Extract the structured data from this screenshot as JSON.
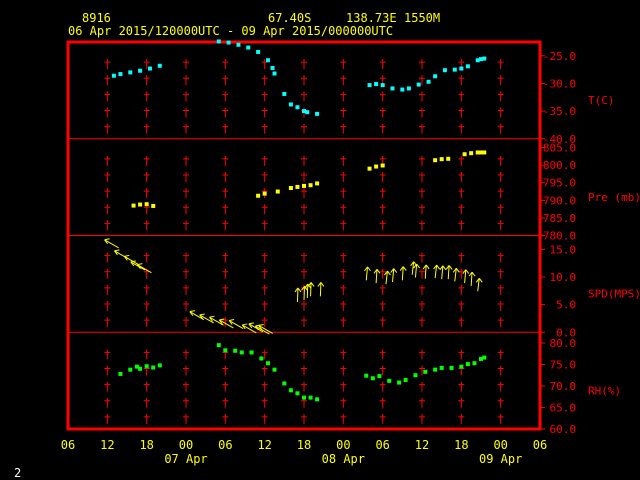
{
  "header": {
    "station": "8916",
    "lat": "67.40S",
    "lon": "138.73E",
    "elevation": "1550M",
    "period": "06 Apr 2015/120000UTC - 09 Apr 2015/000000UTC"
  },
  "corner_label": "2",
  "colors": {
    "frame": "#ff0000",
    "text": "#ffff00",
    "temperature": "#00ffff",
    "pressure": "#ffff00",
    "wind": "#ffff00",
    "humidity": "#00ff00"
  },
  "chart_data": {
    "type": "scatter",
    "x_tick_labels": [
      "06",
      "12",
      "18",
      "00",
      "06",
      "12",
      "18",
      "00",
      "06",
      "12",
      "18",
      "00",
      "06"
    ],
    "date_labels": [
      {
        "label": "07 Apr",
        "at_hour": 24
      },
      {
        "label": "08 Apr",
        "at_hour": 48
      },
      {
        "label": "09 Apr",
        "at_hour": 72
      }
    ],
    "x_unit": "hours from 06 Apr 2015 00UTC",
    "xlim": [
      6,
      78
    ],
    "panels": [
      {
        "id": "temperature",
        "ylabel": "T(C)",
        "ylim": [
          -40,
          -22.5
        ],
        "ticks": [
          -40.0,
          -35.0,
          -30.0,
          -25.0
        ],
        "tick_labels": [
          "-40.0",
          "-35.0",
          "-30.0",
          "-25.0"
        ],
        "points": [
          [
            13,
            -28.6
          ],
          [
            14,
            -28.3
          ],
          [
            15.5,
            -28
          ],
          [
            17,
            -27.7
          ],
          [
            18.5,
            -27.3
          ],
          [
            20,
            -26.8
          ],
          [
            29,
            -22.4
          ],
          [
            30.5,
            -22.6
          ],
          [
            32,
            -23
          ],
          [
            33.5,
            -23.5
          ],
          [
            35,
            -24.3
          ],
          [
            36.5,
            -25.8
          ],
          [
            37.2,
            -27.2
          ],
          [
            37.5,
            -28.2
          ],
          [
            39,
            -31.9
          ],
          [
            40,
            -33.8
          ],
          [
            41,
            -34.3
          ],
          [
            42,
            -35
          ],
          [
            42.5,
            -35.2
          ],
          [
            44,
            -35.5
          ],
          [
            52,
            -30.3
          ],
          [
            53,
            -30.1
          ],
          [
            54,
            -30.3
          ],
          [
            55.5,
            -30.9
          ],
          [
            57,
            -31.1
          ],
          [
            58,
            -30.9
          ],
          [
            59.5,
            -30.2
          ],
          [
            61,
            -29.7
          ],
          [
            62,
            -28.7
          ],
          [
            63.5,
            -27.6
          ],
          [
            65,
            -27.5
          ],
          [
            66,
            -27.3
          ],
          [
            67,
            -26.9
          ],
          [
            68.5,
            -25.8
          ],
          [
            69,
            -25.6
          ],
          [
            69.5,
            -25.5
          ]
        ]
      },
      {
        "id": "pressure",
        "ylabel": "Pre (mb)",
        "ylim": [
          780,
          807.5
        ],
        "ticks": [
          780.0,
          785.0,
          790.0,
          795.0,
          800.0,
          805.0
        ],
        "tick_labels": [
          "780.0",
          "785.0",
          "790.0",
          "795.0",
          "800.0",
          "805.0"
        ],
        "points": [
          [
            16,
            788.5
          ],
          [
            17,
            788.8
          ],
          [
            18,
            788.9
          ],
          [
            19,
            788.4
          ],
          [
            35,
            791.3
          ],
          [
            36,
            791.9
          ],
          [
            38,
            792.5
          ],
          [
            40,
            793.5
          ],
          [
            41,
            793.8
          ],
          [
            42,
            794.1
          ],
          [
            43,
            794.3
          ],
          [
            44,
            794.8
          ],
          [
            52,
            799
          ],
          [
            53,
            799.6
          ],
          [
            54,
            799.9
          ],
          [
            62,
            801.4
          ],
          [
            63,
            801.7
          ],
          [
            64,
            801.8
          ],
          [
            66.5,
            803.1
          ],
          [
            67.5,
            803.4
          ],
          [
            68.5,
            803.6
          ],
          [
            69,
            803.6
          ],
          [
            69.5,
            803.6
          ]
        ]
      },
      {
        "id": "wind",
        "ylabel": "SPD(MPS)",
        "ylim": [
          0,
          17.5
        ],
        "ticks": [
          0.0,
          5.0,
          10.0,
          15.0
        ],
        "tick_labels": [
          "0.0",
          "5.0",
          "10.0",
          "15.0"
        ],
        "barbs": [
          [
            12.5,
            16
          ],
          [
            14,
            14
          ],
          [
            15.5,
            13
          ],
          [
            16.5,
            12
          ],
          [
            17.5,
            11.5
          ],
          [
            25.5,
            3
          ],
          [
            27,
            2.4
          ],
          [
            28.5,
            2
          ],
          [
            30,
            1.5
          ],
          [
            31.5,
            1.4
          ],
          [
            33.5,
            0.6
          ],
          [
            34.5,
            0.8
          ],
          [
            35.5,
            0.4
          ],
          [
            36,
            0.5
          ],
          [
            41,
            5.5
          ],
          [
            42,
            5.8
          ],
          [
            42.5,
            6.2
          ],
          [
            43,
            6.5
          ],
          [
            44.5,
            6.5
          ],
          [
            51.5,
            9.4
          ],
          [
            53,
            8.9
          ],
          [
            54.5,
            8.7
          ],
          [
            55.5,
            9.1
          ],
          [
            57,
            9.4
          ],
          [
            58.5,
            10.4
          ],
          [
            59,
            9.9
          ],
          [
            60.5,
            9.7
          ],
          [
            62,
            9.8
          ],
          [
            63,
            9.6
          ],
          [
            64,
            9.6
          ],
          [
            65,
            9.2
          ],
          [
            66.5,
            8.9
          ],
          [
            67.5,
            8.4
          ],
          [
            68.5,
            7.4
          ]
        ]
      },
      {
        "id": "humidity",
        "ylabel": "RH(%)",
        "ylim": [
          60,
          82.5
        ],
        "ticks": [
          60.0,
          65.0,
          70.0,
          75.0,
          80.0
        ],
        "tick_labels": [
          "60.0",
          "65.0",
          "70.0",
          "75.0",
          "80.0"
        ],
        "points": [
          [
            14,
            72.8
          ],
          [
            15.5,
            73.8
          ],
          [
            16.5,
            74.5
          ],
          [
            17,
            74
          ],
          [
            18,
            74.6
          ],
          [
            19,
            74.3
          ],
          [
            20,
            74.8
          ],
          [
            29,
            79.5
          ],
          [
            30,
            78.3
          ],
          [
            31.5,
            78.2
          ],
          [
            32.5,
            77.8
          ],
          [
            34,
            77.8
          ],
          [
            35.5,
            76.4
          ],
          [
            36.5,
            75.3
          ],
          [
            37.5,
            73.8
          ],
          [
            39,
            70.6
          ],
          [
            40,
            69
          ],
          [
            41,
            68.3
          ],
          [
            42,
            67.3
          ],
          [
            43,
            67.3
          ],
          [
            44,
            66.9
          ],
          [
            51.5,
            72.4
          ],
          [
            52.5,
            71.8
          ],
          [
            53.5,
            72.3
          ],
          [
            55,
            71.2
          ],
          [
            56.5,
            70.8
          ],
          [
            57.5,
            71.4
          ],
          [
            59,
            72.5
          ],
          [
            60.5,
            73.3
          ],
          [
            62,
            73.8
          ],
          [
            63,
            74.2
          ],
          [
            64.5,
            74.2
          ],
          [
            66,
            74.5
          ],
          [
            67,
            75.1
          ],
          [
            68,
            75.3
          ],
          [
            69,
            76.3
          ],
          [
            69.5,
            76.6
          ]
        ]
      }
    ]
  }
}
